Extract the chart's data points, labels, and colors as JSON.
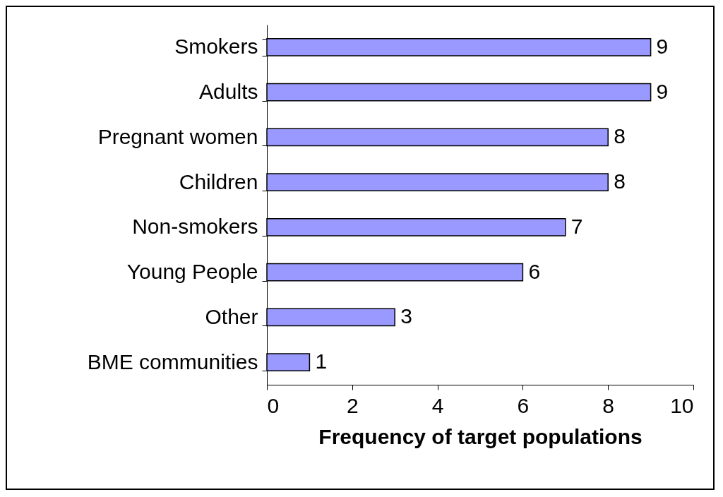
{
  "chart_data": {
    "type": "bar",
    "orientation": "horizontal",
    "xlabel": "Frequency of target populations",
    "categories": [
      "Smokers",
      "Adults",
      "Pregnant women",
      "Children",
      "Non-smokers",
      "Young People",
      "Other",
      "BME communities"
    ],
    "values": [
      9,
      9,
      8,
      8,
      7,
      6,
      3,
      1
    ],
    "color": "#9999ff",
    "xlim": [
      0,
      10
    ],
    "xticks": [
      0,
      2,
      4,
      6,
      8,
      10
    ],
    "grid": false,
    "data_labels": true
  }
}
